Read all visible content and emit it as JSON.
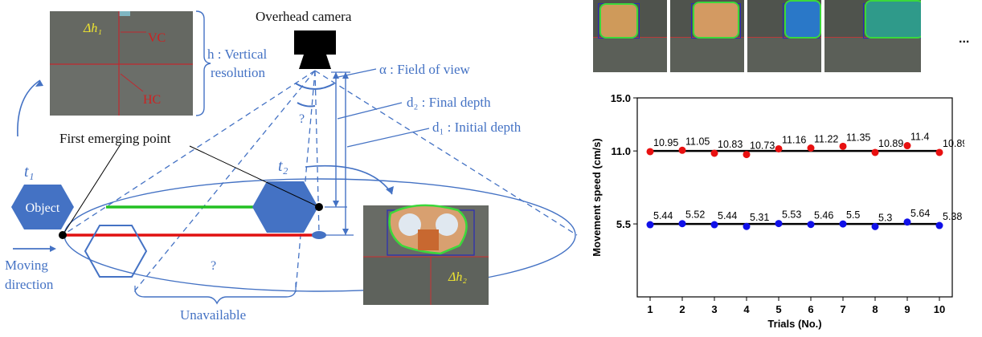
{
  "diagram": {
    "camera_label": "Overhead camera",
    "fov_label": "α : Field of view",
    "final_depth_label": "d₂ : Final depth",
    "initial_depth_label": "d₁ : Initial depth",
    "vertical_res_label_1": "h : Vertical",
    "vertical_res_label_2": "resolution",
    "delta_h1_label": "Δh₁",
    "delta_h2_label": "Δh₂",
    "vc_label": "VC",
    "hc_label": "HC",
    "first_emerging_label": "First emerging point",
    "t1_label": "t₁",
    "t2_label": "t₂",
    "object_label": "Object",
    "moving_label_1": "Moving",
    "moving_label_2": "direction",
    "unavailable_label": "Unavailable",
    "question_mark": "?",
    "colors": {
      "blue": "#4472c4",
      "hex_fill": "#4472c4",
      "green": "#22c022",
      "red": "#e01010"
    }
  },
  "ellipsis": "...",
  "chart_data": {
    "type": "scatter",
    "x": [
      1,
      2,
      3,
      4,
      5,
      6,
      7,
      8,
      9,
      10
    ],
    "xlabel": "Trials (No.)",
    "ylabel": "Movement speed (cm/s)",
    "ylim": [
      0,
      15.0
    ],
    "yticks": [
      "5.5",
      "11.0",
      "15.0"
    ],
    "yticks_values": [
      5.5,
      11.0,
      15.0
    ],
    "series": [
      {
        "values": [
          10.95,
          11.05,
          10.83,
          10.73,
          11.16,
          11.22,
          11.35,
          10.89,
          11.4,
          10.89
        ],
        "labels": [
          "10.95",
          "11.05",
          "10.83",
          "10.73",
          "11.16",
          "11.22",
          "11.35",
          "10.89",
          "11.4",
          "10.89"
        ],
        "reference": 11.0,
        "color": "#e81010"
      },
      {
        "values": [
          5.44,
          5.52,
          5.44,
          5.31,
          5.53,
          5.46,
          5.5,
          5.3,
          5.64,
          5.38
        ],
        "labels": [
          "5.44",
          "5.52",
          "5.44",
          "5.31",
          "5.53",
          "5.46",
          "5.5",
          "5.3",
          "5.64",
          "5.38"
        ],
        "reference": 5.5,
        "color": "#1010e8"
      }
    ],
    "grid": false
  }
}
